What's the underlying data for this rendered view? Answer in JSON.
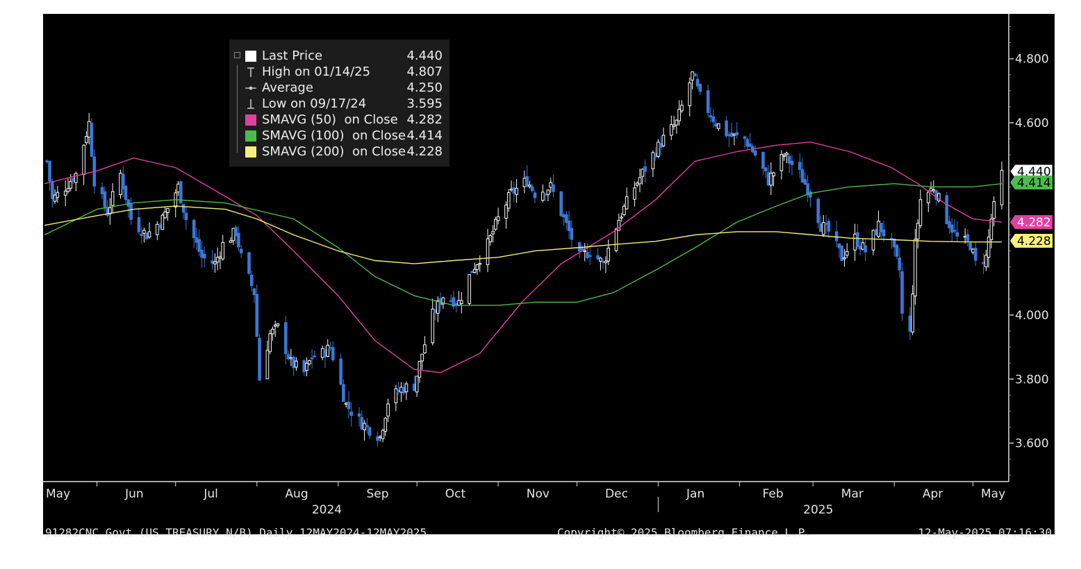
{
  "legend": {
    "items": [
      {
        "label": "Last Price",
        "value": "4.440",
        "icon": "white-square-icon",
        "color": "#ffffff"
      },
      {
        "label": "High on 01/14/25",
        "value": "4.807",
        "icon": "high-marker-icon",
        "color": "#cccccc"
      },
      {
        "label": "Average",
        "value": "4.250",
        "icon": "average-line-icon",
        "color": "#cccccc"
      },
      {
        "label": "Low on 09/17/24",
        "value": "3.595",
        "icon": "low-marker-icon",
        "color": "#cccccc"
      },
      {
        "label": "SMAVG (50)  on Close",
        "value": "4.282",
        "icon": "magenta-square-icon",
        "color": "#e040a0"
      },
      {
        "label": "SMAVG (100)  on Close",
        "value": "4.414",
        "icon": "green-square-icon",
        "color": "#4cbb4c"
      },
      {
        "label": "SMAVG (200)  on Close",
        "value": "4.228",
        "icon": "yellow-square-icon",
        "color": "#f5f07a"
      }
    ]
  },
  "footer": {
    "security": "91282CNC Govt (US TREASURY N/B)  Daily 12MAY2024-12MAY2025",
    "copyright": "Copyright© 2025 Bloomberg Finance L.P.",
    "timestamp": "12-May-2025 07:16:30"
  },
  "colors": {
    "background": "#000000",
    "axis": "#dddddd",
    "up_candle": "#ffffff",
    "down_candle": "#3a78d8",
    "sma50": "#e040a0",
    "sma100": "#4cbb4c",
    "sma200": "#f5f07a"
  },
  "chart_data": {
    "type": "candlestick",
    "x_months": [
      "May",
      "Jun",
      "Jul",
      "Aug",
      "Sep",
      "Oct",
      "Nov",
      "Dec",
      "Jan",
      "Feb",
      "Mar",
      "Apr",
      "May"
    ],
    "x_years": [
      "2024",
      "2025"
    ],
    "y_ticks": [
      "3.600",
      "3.800",
      "4.000",
      "4.600",
      "4.800"
    ],
    "ylim": [
      3.48,
      4.94
    ],
    "x_range": [
      "2024-05-12",
      "2025-05-12"
    ],
    "grid": false,
    "legend_position": "top-left",
    "price_tags": [
      {
        "value": 4.44,
        "label": "4.440",
        "color": "#ffffff",
        "text_color": "#000000"
      },
      {
        "value": 4.414,
        "label": "4.414",
        "color": "#4cbb4c",
        "text_color": "#000000"
      },
      {
        "value": 4.282,
        "label": "4.282",
        "color": "#e040a0",
        "text_color": "#ffffff"
      },
      {
        "value": 4.228,
        "label": "4.228",
        "color": "#f5f07a",
        "text_color": "#000000"
      }
    ],
    "close_path": [
      [
        "2024-05-13",
        4.48
      ],
      [
        "2024-05-15",
        4.36
      ],
      [
        "2024-05-20",
        4.4
      ],
      [
        "2024-05-24",
        4.44
      ],
      [
        "2024-05-29",
        4.6
      ],
      [
        "2024-05-31",
        4.42
      ],
      [
        "2024-06-05",
        4.32
      ],
      [
        "2024-06-10",
        4.44
      ],
      [
        "2024-06-14",
        4.3
      ],
      [
        "2024-06-20",
        4.25
      ],
      [
        "2024-06-26",
        4.3
      ],
      [
        "2024-07-02",
        4.4
      ],
      [
        "2024-07-05",
        4.3
      ],
      [
        "2024-07-11",
        4.18
      ],
      [
        "2024-07-16",
        4.16
      ],
      [
        "2024-07-19",
        4.22
      ],
      [
        "2024-07-24",
        4.26
      ],
      [
        "2024-07-26",
        4.18
      ],
      [
        "2024-07-31",
        4.07
      ],
      [
        "2024-08-02",
        3.8
      ],
      [
        "2024-08-06",
        3.94
      ],
      [
        "2024-08-09",
        3.96
      ],
      [
        "2024-08-14",
        3.85
      ],
      [
        "2024-08-19",
        3.82
      ],
      [
        "2024-08-22",
        3.87
      ],
      [
        "2024-08-26",
        3.88
      ],
      [
        "2024-08-29",
        3.9
      ],
      [
        "2024-09-04",
        3.72
      ],
      [
        "2024-09-09",
        3.67
      ],
      [
        "2024-09-12",
        3.65
      ],
      [
        "2024-09-17",
        3.62
      ],
      [
        "2024-09-20",
        3.73
      ],
      [
        "2024-09-25",
        3.77
      ],
      [
        "2024-09-30",
        3.78
      ],
      [
        "2024-10-03",
        3.88
      ],
      [
        "2024-10-07",
        4.0
      ],
      [
        "2024-10-11",
        4.06
      ],
      [
        "2024-10-17",
        4.04
      ],
      [
        "2024-10-22",
        4.14
      ],
      [
        "2024-10-28",
        4.22
      ],
      [
        "2024-11-01",
        4.3
      ],
      [
        "2024-11-06",
        4.38
      ],
      [
        "2024-11-12",
        4.42
      ],
      [
        "2024-11-15",
        4.38
      ],
      [
        "2024-11-21",
        4.4
      ],
      [
        "2024-11-26",
        4.3
      ],
      [
        "2024-12-02",
        4.18
      ],
      [
        "2024-12-06",
        4.2
      ],
      [
        "2024-12-11",
        4.16
      ],
      [
        "2024-12-17",
        4.3
      ],
      [
        "2024-12-23",
        4.4
      ],
      [
        "2024-12-30",
        4.5
      ],
      [
        "2025-01-03",
        4.55
      ],
      [
        "2025-01-08",
        4.6
      ],
      [
        "2025-01-14",
        4.75
      ],
      [
        "2025-01-17",
        4.68
      ],
      [
        "2025-01-23",
        4.6
      ],
      [
        "2025-01-28",
        4.56
      ],
      [
        "2025-02-03",
        4.55
      ],
      [
        "2025-02-07",
        4.5
      ],
      [
        "2025-02-12",
        4.42
      ],
      [
        "2025-02-18",
        4.5
      ],
      [
        "2025-02-24",
        4.44
      ],
      [
        "2025-02-28",
        4.38
      ],
      [
        "2025-03-04",
        4.28
      ],
      [
        "2025-03-07",
        4.26
      ],
      [
        "2025-03-12",
        4.18
      ],
      [
        "2025-03-17",
        4.24
      ],
      [
        "2025-03-21",
        4.2
      ],
      [
        "2025-03-26",
        4.28
      ],
      [
        "2025-03-31",
        4.22
      ],
      [
        "2025-04-03",
        4.14
      ],
      [
        "2025-04-04",
        4.0
      ],
      [
        "2025-04-07",
        3.94
      ],
      [
        "2025-04-09",
        4.22
      ],
      [
        "2025-04-11",
        4.36
      ],
      [
        "2025-04-16",
        4.4
      ],
      [
        "2025-04-21",
        4.3
      ],
      [
        "2025-04-25",
        4.24
      ],
      [
        "2025-04-30",
        4.22
      ],
      [
        "2025-05-02",
        4.16
      ],
      [
        "2025-05-06",
        4.18
      ],
      [
        "2025-05-08",
        4.3
      ],
      [
        "2025-05-12",
        4.44
      ]
    ],
    "series": [
      {
        "name": "SMAVG (50)  on Close",
        "color": "#e040a0",
        "points": [
          [
            "2024-05-12",
            4.41
          ],
          [
            "2024-06-01",
            4.45
          ],
          [
            "2024-06-15",
            4.49
          ],
          [
            "2024-07-01",
            4.46
          ],
          [
            "2024-07-20",
            4.37
          ],
          [
            "2024-08-01",
            4.31
          ],
          [
            "2024-08-15",
            4.2
          ],
          [
            "2024-09-01",
            4.06
          ],
          [
            "2024-09-15",
            3.92
          ],
          [
            "2024-09-30",
            3.83
          ],
          [
            "2024-10-10",
            3.82
          ],
          [
            "2024-10-25",
            3.88
          ],
          [
            "2024-11-10",
            4.04
          ],
          [
            "2024-11-25",
            4.16
          ],
          [
            "2024-12-15",
            4.26
          ],
          [
            "2024-12-31",
            4.36
          ],
          [
            "2025-01-15",
            4.48
          ],
          [
            "2025-01-31",
            4.51
          ],
          [
            "2025-02-15",
            4.53
          ],
          [
            "2025-02-28",
            4.54
          ],
          [
            "2025-03-15",
            4.51
          ],
          [
            "2025-03-31",
            4.46
          ],
          [
            "2025-04-10",
            4.41
          ],
          [
            "2025-04-20",
            4.35
          ],
          [
            "2025-05-01",
            4.3
          ],
          [
            "2025-05-12",
            4.29
          ]
        ]
      },
      {
        "name": "SMAVG (100)  on Close",
        "color": "#4cbb4c",
        "points": [
          [
            "2024-05-12",
            4.25
          ],
          [
            "2024-06-01",
            4.33
          ],
          [
            "2024-06-15",
            4.35
          ],
          [
            "2024-07-01",
            4.36
          ],
          [
            "2024-07-20",
            4.35
          ],
          [
            "2024-08-15",
            4.3
          ],
          [
            "2024-09-01",
            4.21
          ],
          [
            "2024-09-15",
            4.12
          ],
          [
            "2024-09-30",
            4.06
          ],
          [
            "2024-10-15",
            4.03
          ],
          [
            "2024-11-01",
            4.03
          ],
          [
            "2024-11-15",
            4.04
          ],
          [
            "2024-12-01",
            4.04
          ],
          [
            "2024-12-15",
            4.07
          ],
          [
            "2024-12-31",
            4.14
          ],
          [
            "2025-01-15",
            4.21
          ],
          [
            "2025-01-31",
            4.29
          ],
          [
            "2025-02-15",
            4.34
          ],
          [
            "2025-02-28",
            4.38
          ],
          [
            "2025-03-15",
            4.4
          ],
          [
            "2025-04-01",
            4.41
          ],
          [
            "2025-04-15",
            4.4
          ],
          [
            "2025-05-01",
            4.4
          ],
          [
            "2025-05-12",
            4.41
          ]
        ]
      },
      {
        "name": "SMAVG (200)  on Close",
        "color": "#f5f07a",
        "points": [
          [
            "2024-05-12",
            4.28
          ],
          [
            "2024-06-01",
            4.31
          ],
          [
            "2024-06-15",
            4.33
          ],
          [
            "2024-07-01",
            4.34
          ],
          [
            "2024-07-20",
            4.33
          ],
          [
            "2024-08-01",
            4.3
          ],
          [
            "2024-08-15",
            4.25
          ],
          [
            "2024-09-01",
            4.2
          ],
          [
            "2024-09-15",
            4.17
          ],
          [
            "2024-09-30",
            4.16
          ],
          [
            "2024-10-15",
            4.17
          ],
          [
            "2024-11-01",
            4.18
          ],
          [
            "2024-11-15",
            4.2
          ],
          [
            "2024-12-01",
            4.21
          ],
          [
            "2024-12-15",
            4.22
          ],
          [
            "2024-12-31",
            4.23
          ],
          [
            "2025-01-15",
            4.25
          ],
          [
            "2025-01-31",
            4.26
          ],
          [
            "2025-02-15",
            4.26
          ],
          [
            "2025-03-01",
            4.25
          ],
          [
            "2025-03-15",
            4.24
          ],
          [
            "2025-04-01",
            4.235
          ],
          [
            "2025-04-15",
            4.23
          ],
          [
            "2025-05-01",
            4.228
          ],
          [
            "2025-05-12",
            4.228
          ]
        ]
      }
    ]
  }
}
